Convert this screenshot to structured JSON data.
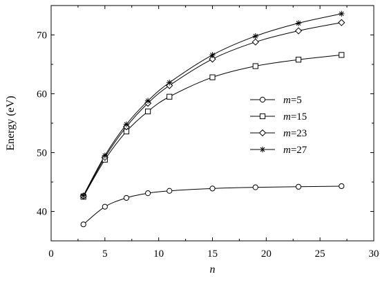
{
  "chart_data": {
    "type": "line",
    "xlabel": "n",
    "ylabel": "Energy (eV)",
    "xlim": [
      0,
      30
    ],
    "ylim": [
      35,
      75
    ],
    "xticks": [
      0,
      5,
      10,
      15,
      20,
      25,
      30
    ],
    "yticks": [
      40,
      50,
      60,
      70
    ],
    "x": [
      3,
      5,
      7,
      9,
      11,
      15,
      19,
      23,
      27
    ],
    "grid": false,
    "legend_position": "center-right",
    "series": [
      {
        "name": "m=5",
        "legend_var": "m",
        "legend_val": "=5",
        "marker": "circle",
        "values": [
          37.8,
          40.8,
          42.3,
          43.1,
          43.5,
          43.9,
          44.1,
          44.2,
          44.3
        ]
      },
      {
        "name": "m=15",
        "legend_var": "m",
        "legend_val": "=15",
        "marker": "square",
        "values": [
          42.5,
          48.8,
          53.6,
          57.0,
          59.5,
          62.8,
          64.7,
          65.8,
          66.6
        ]
      },
      {
        "name": "m=23",
        "legend_var": "m",
        "legend_val": "=23",
        "marker": "diamond",
        "values": [
          42.6,
          49.2,
          54.4,
          58.4,
          61.4,
          65.9,
          68.8,
          70.7,
          72.1
        ]
      },
      {
        "name": "m=27",
        "legend_var": "m",
        "legend_val": "=27",
        "marker": "asterisk",
        "values": [
          42.7,
          49.5,
          54.8,
          58.8,
          61.9,
          66.6,
          69.8,
          72.0,
          73.6
        ]
      }
    ],
    "line_color": "#000000"
  }
}
